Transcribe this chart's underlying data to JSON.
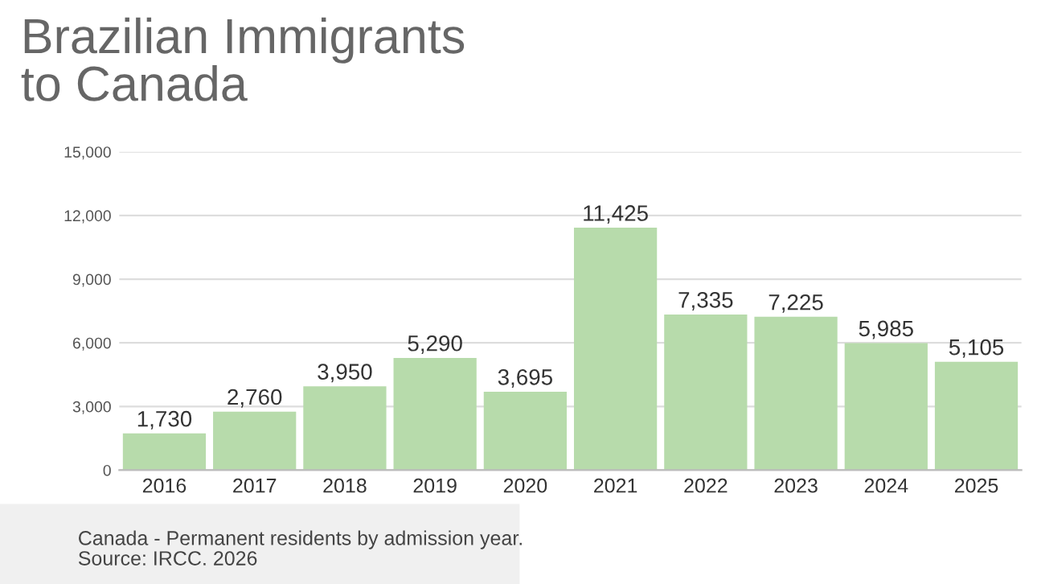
{
  "chart_data": {
    "type": "bar",
    "title": "Brazilian Immigrants\nto Canada",
    "categories": [
      "2016",
      "2017",
      "2018",
      "2019",
      "2020",
      "2021",
      "2022",
      "2023",
      "2024",
      "2025"
    ],
    "values": [
      1730,
      2760,
      3950,
      5290,
      3695,
      11425,
      7335,
      7225,
      5985,
      5105
    ],
    "value_labels": [
      "1,730",
      "2,760",
      "3,950",
      "5,290",
      "3,695",
      "11,425",
      "7,335",
      "7,225",
      "5,985",
      "5,105"
    ],
    "color": "#b7dbab",
    "ylim": [
      0,
      15000
    ],
    "yticks": [
      {
        "value": 0,
        "label": "0"
      },
      {
        "value": 3000,
        "label": "3,000"
      },
      {
        "value": 6000,
        "label": "6,000"
      },
      {
        "value": 9000,
        "label": "9,000"
      },
      {
        "value": 12000,
        "label": "12,000"
      },
      {
        "value": 15000,
        "label": "15,000"
      }
    ],
    "grid": "y",
    "annotations": [
      "Canada - Permanent residents by admission year.",
      "Source: IRCC. 2026"
    ]
  }
}
